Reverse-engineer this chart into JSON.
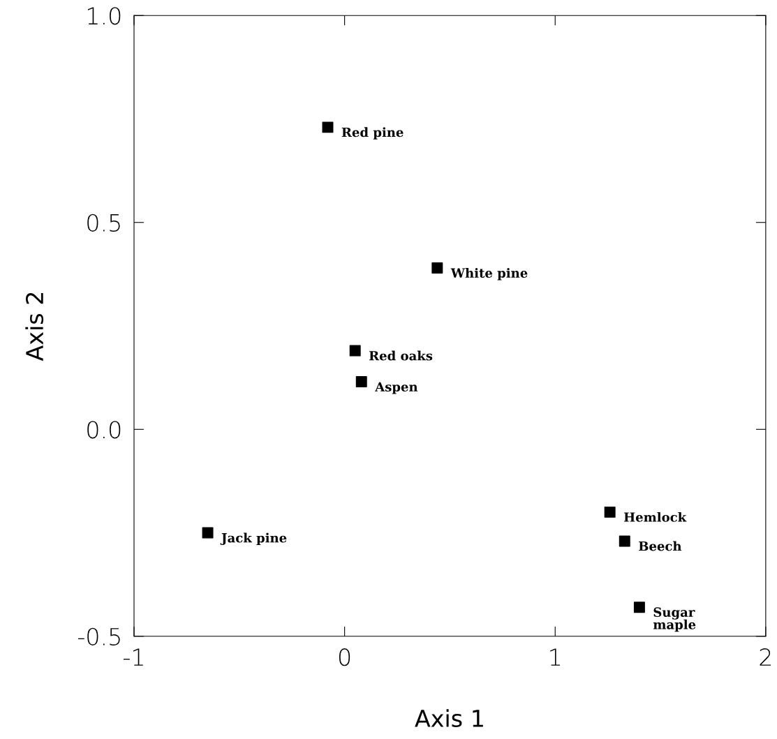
{
  "chart_data": {
    "type": "scatter",
    "xlabel": "Axis 1",
    "ylabel": "Axis 2",
    "x": [
      -0.08,
      0.44,
      0.05,
      0.08,
      -0.65,
      1.26,
      1.33,
      1.4
    ],
    "values": [
      0.73,
      0.39,
      0.19,
      0.115,
      -0.25,
      -0.2,
      -0.27,
      -0.43
    ],
    "color": "#000000",
    "marker": "square",
    "annotations": [
      {
        "text": "Red pine",
        "x": -0.08,
        "y": 0.73
      },
      {
        "text": "White pine",
        "x": 0.44,
        "y": 0.39
      },
      {
        "text": "Red oaks",
        "x": 0.05,
        "y": 0.19
      },
      {
        "text": "Aspen",
        "x": 0.08,
        "y": 0.115
      },
      {
        "text": "Jack pine",
        "x": -0.65,
        "y": -0.25
      },
      {
        "text": "Hemlock",
        "x": 1.26,
        "y": -0.2
      },
      {
        "text": "Beech",
        "x": 1.33,
        "y": -0.27
      },
      {
        "text": "Sugar\nmaple",
        "x": 1.4,
        "y": -0.43
      }
    ],
    "xlim": [
      -1,
      2
    ],
    "xticks": [
      -1,
      0,
      1,
      2
    ],
    "ylim": [
      -0.5,
      1.0
    ],
    "yticks": [
      {
        "value": -0.5,
        "label": "-0.5"
      },
      {
        "value": 0,
        "label": "0.0"
      },
      {
        "value": 0.5,
        "label": "0.5"
      },
      {
        "value": 1.0,
        "label": "1.0"
      }
    ],
    "grid": false,
    "legend": false
  }
}
